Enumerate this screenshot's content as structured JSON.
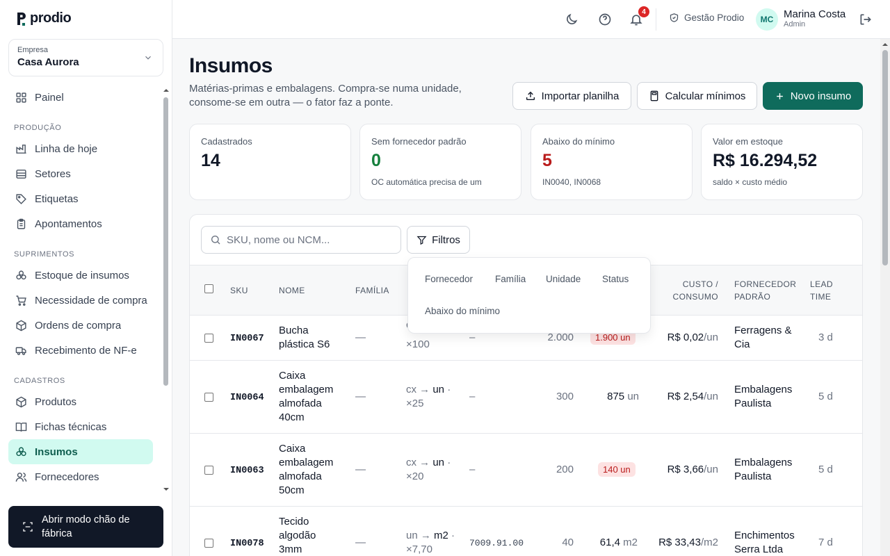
{
  "app": {
    "logo_text": "prodio"
  },
  "company": {
    "label": "Empresa",
    "name": "Casa Aurora"
  },
  "sidebar": {
    "items_top": [
      {
        "label": "Painel",
        "icon": "grid-icon"
      }
    ],
    "sections": [
      {
        "title": "PRODUÇÃO",
        "items": [
          {
            "label": "Linha de hoje",
            "icon": "factory-icon"
          },
          {
            "label": "Setores",
            "icon": "list-icon"
          },
          {
            "label": "Etiquetas",
            "icon": "tag-icon"
          },
          {
            "label": "Apontamentos",
            "icon": "clipboard-icon"
          }
        ]
      },
      {
        "title": "SUPRIMENTOS",
        "items": [
          {
            "label": "Estoque de insumos",
            "icon": "boxes-icon"
          },
          {
            "label": "Necessidade de compra",
            "icon": "cart-icon"
          },
          {
            "label": "Ordens de compra",
            "icon": "package-icon"
          },
          {
            "label": "Recebimento de NF-e",
            "icon": "truck-icon"
          }
        ]
      },
      {
        "title": "CADASTROS",
        "items": [
          {
            "label": "Produtos",
            "icon": "package-icon"
          },
          {
            "label": "Fichas técnicas",
            "icon": "book-icon"
          },
          {
            "label": "Insumos",
            "icon": "boxes-icon",
            "active": true
          },
          {
            "label": "Fornecedores",
            "icon": "users-icon"
          }
        ]
      }
    ],
    "floor_button": "Abrir modo chão de fábrica"
  },
  "topbar": {
    "notifications_count": "4",
    "gestao_label": "Gestão Prodio",
    "user_initials": "MC",
    "user_name": "Marina Costa",
    "user_role": "Admin"
  },
  "page": {
    "title": "Insumos",
    "subtitle": "Matérias-primas e embalagens. Compra-se numa unidade, consome-se em outra — o fator faz a ponte.",
    "actions": {
      "import": "Importar planilha",
      "calc": "Calcular mínimos",
      "new": "Novo insumo"
    }
  },
  "stats": [
    {
      "label": "Cadastrados",
      "value": "14",
      "hint": "",
      "color": "#111827"
    },
    {
      "label": "Sem fornecedor padrão",
      "value": "0",
      "hint": "OC automática precisa de um",
      "color": "#15803d"
    },
    {
      "label": "Abaixo do mínimo",
      "value": "5",
      "hint": "IN0040, IN0068",
      "color": "#b91c1c"
    },
    {
      "label": "Valor em estoque",
      "value": "R$ 16.294,52",
      "hint": "saldo × custo médio",
      "color": "#111827"
    }
  ],
  "search": {
    "placeholder": "SKU, nome ou NCM..."
  },
  "filters": {
    "button": "Filtros",
    "options": [
      "Fornecedor",
      "Família",
      "Unidade",
      "Status",
      "Abaixo do mínimo"
    ]
  },
  "table": {
    "headers": {
      "sku": "SKU",
      "nome": "NOME",
      "familia": "FAMÍLIA",
      "custo": "CUSTO / CONSUMO",
      "fornecedor": "FORNECEDOR PADRÃO",
      "lead": "LEAD TIME"
    },
    "rows": [
      {
        "sku": "IN0067",
        "nome": "Bucha plástica S6",
        "familia": "—",
        "conv_line1": "cx",
        "conv_line2": "×100",
        "ncm": "–",
        "minimo": "2.000",
        "saldo": "1.900 un",
        "saldo_alert": true,
        "custo_val": "R$ 0,02",
        "custo_unit": "/un",
        "fornecedor": "Ferragens & Cia",
        "lead": "3 d"
      },
      {
        "sku": "IN0064",
        "nome": "Caixa embalagem almofada 40cm",
        "familia": "—",
        "conv_from": "cx",
        "conv_to": "un",
        "conv_factor": "×25",
        "ncm": "–",
        "minimo": "300",
        "saldo_val": "875",
        "saldo_unit": "un",
        "custo_val": "R$ 2,54",
        "custo_unit": "/un",
        "fornecedor": "Embalagens Paulista",
        "lead": "5 d"
      },
      {
        "sku": "IN0063",
        "nome": "Caixa embalagem almofada 50cm",
        "familia": "—",
        "conv_from": "cx",
        "conv_to": "un",
        "conv_factor": "×20",
        "ncm": "–",
        "minimo": "200",
        "saldo": "140 un",
        "saldo_alert": true,
        "custo_val": "R$ 3,66",
        "custo_unit": "/un",
        "fornecedor": "Embalagens Paulista",
        "lead": "5 d"
      },
      {
        "sku": "IN0078",
        "nome": "Tecido algodão 3mm",
        "familia": "—",
        "conv_from": "un",
        "conv_to": "m2",
        "conv_factor": "×7,70",
        "ncm": "7009.91.00",
        "minimo": "40",
        "saldo_val": "61,4",
        "saldo_unit": "m2",
        "custo_val": "R$ 33,43",
        "custo_unit": "/m2",
        "fornecedor": "Enchimentos Serra Ltda",
        "lead": "7 d"
      }
    ]
  },
  "colors": {
    "accent": "#0f6b5c",
    "accent_light": "#d1faf0",
    "danger": "#b91c1c",
    "sidebar_dark": "#111827"
  }
}
